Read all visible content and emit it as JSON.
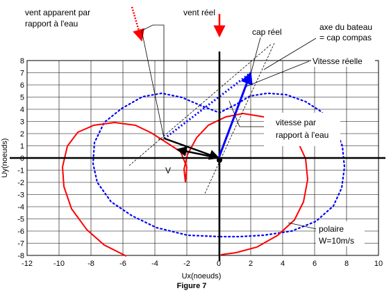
{
  "labels": {
    "vent_apparent_line1": "vent apparent par",
    "vent_apparent_line2": "rapport à l'eau",
    "vent_reel": "vent réel",
    "cap_reel": "cap réel",
    "axe_line1": "axe du bateau",
    "axe_line2": "= cap compas",
    "vitesse_reelle": "Vitesse réelle",
    "vitesse_eau_line1": "vitesse par",
    "vitesse_eau_line2": "rapport à l'eau",
    "v": "V",
    "polaire_line1": "polaire",
    "polaire_line2": "W=10m/s"
  },
  "axes": {
    "xlabel": "Ux(noeuds)",
    "ylabel": "Uy(noeuds)",
    "xlim": [
      -12,
      10
    ],
    "ylim": [
      -8,
      8
    ],
    "xticks": [
      -12,
      -10,
      -8,
      -6,
      -4,
      -2,
      0,
      2,
      4,
      6,
      8,
      10
    ],
    "yticks": [
      8,
      7,
      6,
      5,
      4,
      3,
      2,
      1,
      0,
      -1,
      -2,
      -3,
      -4,
      -5,
      -6,
      -7,
      -8
    ],
    "grid": true
  },
  "caption": "Figure 7",
  "colors": {
    "polar_red": "#ff0000",
    "polar_blue": "#0000ff",
    "apparent_wind": "#ff0000",
    "true_speed": "#0000ff"
  },
  "vectors": {
    "vitesse_reelle": {
      "from": [
        0,
        0
      ],
      "to": [
        2.0,
        7.0
      ]
    },
    "vitesse_eau": {
      "from": [
        0,
        0
      ],
      "to": [
        1.0,
        4.0
      ]
    },
    "v_vector": {
      "from": [
        0,
        0
      ],
      "to": [
        -2.6,
        0.7
      ]
    },
    "apparent_wind_vector": {
      "from": [
        -3.4,
        1.6
      ],
      "to": [
        0,
        0
      ]
    },
    "apparent_wind_blue": {
      "from": [
        -3.4,
        1.6
      ],
      "to": [
        2.0,
        7.0
      ]
    }
  }
}
